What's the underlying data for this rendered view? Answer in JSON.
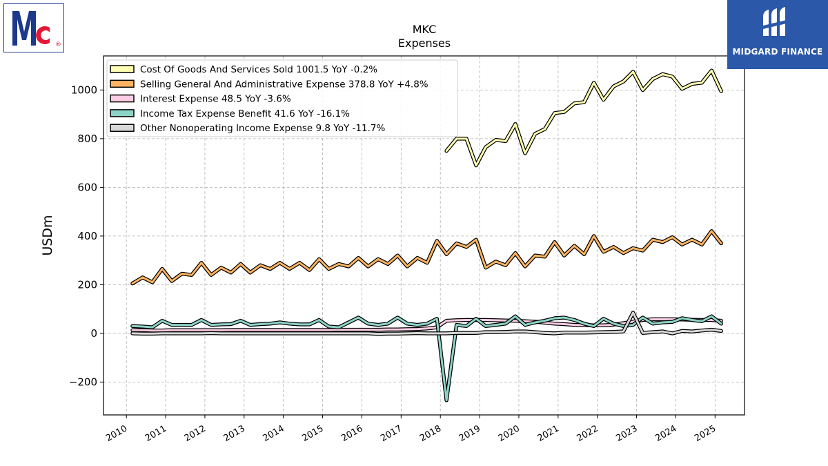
{
  "logos": {
    "company": "McCormick",
    "company_icon": "mc-logo-icon",
    "publisher_text": "MIDGARD FINANCE",
    "publisher_icon": "midgard-logo-icon"
  },
  "chart_data": {
    "type": "line",
    "title": "MKC",
    "subtitle": "Expenses",
    "xlabel": "",
    "ylabel": "USDm",
    "xlim": [
      "2009-06-01",
      "2025-10-01"
    ],
    "ylim": [
      -335,
      1140
    ],
    "xticks": [
      "2010",
      "2011",
      "2012",
      "2013",
      "2014",
      "2015",
      "2016",
      "2017",
      "2018",
      "2019",
      "2020",
      "2021",
      "2022",
      "2023",
      "2024",
      "2025"
    ],
    "yticks": [
      -200,
      0,
      200,
      400,
      600,
      800,
      1000
    ],
    "ytick_labels": [
      "−200",
      "0",
      "200",
      "400",
      "600",
      "800",
      "1000"
    ],
    "grid": true,
    "legend_position": "top-left",
    "series": [
      {
        "name": "Cost Of Goods And Services Sold",
        "legend": "Cost Of Goods And Services Sold  1001.5 YoY -0.2%",
        "color": "#ffffb3",
        "x": [
          "2018-02-28",
          "2018-05-31",
          "2018-08-31",
          "2018-11-30",
          "2019-02-28",
          "2019-05-31",
          "2019-08-31",
          "2019-11-30",
          "2020-02-29",
          "2020-05-31",
          "2020-08-31",
          "2020-11-30",
          "2021-02-28",
          "2021-05-31",
          "2021-08-31",
          "2021-11-30",
          "2022-02-28",
          "2022-05-31",
          "2022-08-31",
          "2022-11-30",
          "2023-02-28",
          "2023-05-31",
          "2023-08-31",
          "2023-11-30",
          "2024-02-29",
          "2024-05-31",
          "2024-08-31",
          "2024-11-30",
          "2025-02-28"
        ],
        "y": [
          750,
          800,
          800,
          690,
          765,
          795,
          790,
          860,
          740,
          820,
          840,
          905,
          910,
          945,
          950,
          1030,
          960,
          1015,
          1035,
          1075,
          1000,
          1045,
          1065,
          1055,
          1005,
          1025,
          1030,
          1080,
          995
        ]
      },
      {
        "name": "Selling General And Administrative Expense",
        "legend": "Selling General And Administrative Expense  378.8 YoY +4.8%",
        "color": "#fdb462",
        "x": [
          "2010-02-28",
          "2010-05-31",
          "2010-08-31",
          "2010-11-30",
          "2011-02-28",
          "2011-05-31",
          "2011-08-31",
          "2011-11-30",
          "2012-02-29",
          "2012-05-31",
          "2012-08-31",
          "2012-11-30",
          "2013-02-28",
          "2013-05-31",
          "2013-08-31",
          "2013-11-30",
          "2014-02-28",
          "2014-05-31",
          "2014-08-31",
          "2014-11-30",
          "2015-02-28",
          "2015-05-31",
          "2015-08-31",
          "2015-11-30",
          "2016-02-29",
          "2016-05-31",
          "2016-08-31",
          "2016-11-30",
          "2017-02-28",
          "2017-05-31",
          "2017-08-31",
          "2017-11-30",
          "2018-02-28",
          "2018-05-31",
          "2018-08-31",
          "2018-11-30",
          "2019-02-28",
          "2019-05-31",
          "2019-08-31",
          "2019-11-30",
          "2020-02-29",
          "2020-05-31",
          "2020-08-31",
          "2020-11-30",
          "2021-02-28",
          "2021-05-31",
          "2021-08-31",
          "2021-11-30",
          "2022-02-28",
          "2022-05-31",
          "2022-08-31",
          "2022-11-30",
          "2023-02-28",
          "2023-05-31",
          "2023-08-31",
          "2023-11-30",
          "2024-02-29",
          "2024-05-31",
          "2024-08-31",
          "2024-11-30",
          "2025-02-28"
        ],
        "y": [
          205,
          230,
          210,
          265,
          215,
          245,
          240,
          290,
          240,
          270,
          250,
          285,
          250,
          280,
          265,
          290,
          265,
          290,
          260,
          305,
          265,
          285,
          275,
          310,
          275,
          305,
          285,
          320,
          275,
          310,
          290,
          380,
          325,
          370,
          355,
          385,
          270,
          295,
          280,
          330,
          275,
          320,
          315,
          375,
          320,
          360,
          325,
          400,
          335,
          355,
          330,
          350,
          340,
          385,
          375,
          395,
          365,
          385,
          365,
          420,
          370
        ]
      },
      {
        "name": "Interest Expense",
        "legend": "Interest Expense  48.5 YoY -3.6%",
        "color": "#fccde5",
        "x": [
          "2010-02-28",
          "2010-05-31",
          "2010-08-31",
          "2010-11-30",
          "2011-02-28",
          "2011-05-31",
          "2011-08-31",
          "2011-11-30",
          "2012-02-29",
          "2012-05-31",
          "2012-08-31",
          "2012-11-30",
          "2013-02-28",
          "2013-05-31",
          "2013-08-31",
          "2013-11-30",
          "2014-02-28",
          "2014-05-31",
          "2014-08-31",
          "2014-11-30",
          "2015-02-28",
          "2015-05-31",
          "2015-08-31",
          "2015-11-30",
          "2016-02-29",
          "2016-05-31",
          "2016-08-31",
          "2016-11-30",
          "2017-02-28",
          "2017-05-31",
          "2017-08-31",
          "2017-11-30",
          "2018-02-28",
          "2018-05-31",
          "2018-08-31",
          "2018-11-30",
          "2019-02-28",
          "2019-05-31",
          "2019-08-31",
          "2019-11-30",
          "2020-02-29",
          "2020-05-31",
          "2020-08-31",
          "2020-11-30",
          "2021-02-28",
          "2021-05-31",
          "2021-08-31",
          "2021-11-30",
          "2022-02-28",
          "2022-05-31",
          "2022-08-31",
          "2022-11-30",
          "2023-02-28",
          "2023-05-31",
          "2023-08-31",
          "2023-11-30",
          "2024-02-29",
          "2024-05-31",
          "2024-08-31",
          "2024-11-30",
          "2025-02-28"
        ],
        "y": [
          13,
          13,
          12,
          12,
          13,
          13,
          13,
          13,
          13,
          13,
          14,
          14,
          14,
          14,
          14,
          14,
          14,
          14,
          14,
          14,
          14,
          15,
          15,
          15,
          15,
          15,
          16,
          16,
          17,
          18,
          20,
          25,
          52,
          54,
          55,
          55,
          55,
          54,
          53,
          52,
          50,
          48,
          44,
          40,
          38,
          35,
          34,
          33,
          33,
          36,
          42,
          48,
          55,
          58,
          58,
          58,
          57,
          56,
          55,
          55,
          52
        ]
      },
      {
        "name": "Income Tax Expense Benefit",
        "legend": "Income Tax Expense Benefit  41.6 YoY -16.1%",
        "color": "#8dd3c7",
        "x": [
          "2010-02-28",
          "2010-05-31",
          "2010-08-31",
          "2010-11-30",
          "2011-02-28",
          "2011-05-31",
          "2011-08-31",
          "2011-11-30",
          "2012-02-29",
          "2012-05-31",
          "2012-08-31",
          "2012-11-30",
          "2013-02-28",
          "2013-05-31",
          "2013-08-31",
          "2013-11-30",
          "2014-02-28",
          "2014-05-31",
          "2014-08-31",
          "2014-11-30",
          "2015-02-28",
          "2015-05-31",
          "2015-08-31",
          "2015-11-30",
          "2016-02-29",
          "2016-05-31",
          "2016-08-31",
          "2016-11-30",
          "2017-02-28",
          "2017-05-31",
          "2017-08-31",
          "2017-11-30",
          "2018-02-28",
          "2018-05-31",
          "2018-08-31",
          "2018-11-30",
          "2019-02-28",
          "2019-05-31",
          "2019-08-31",
          "2019-11-30",
          "2020-02-29",
          "2020-05-31",
          "2020-08-31",
          "2020-11-30",
          "2021-02-28",
          "2021-05-31",
          "2021-08-31",
          "2021-11-30",
          "2022-02-28",
          "2022-05-31",
          "2022-08-31",
          "2022-11-30",
          "2023-02-28",
          "2023-05-31",
          "2023-08-31",
          "2023-11-30",
          "2024-02-29",
          "2024-05-31",
          "2024-08-31",
          "2024-11-30",
          "2025-02-28"
        ],
        "y": [
          30,
          28,
          25,
          52,
          35,
          35,
          35,
          55,
          35,
          37,
          38,
          52,
          35,
          38,
          40,
          45,
          40,
          37,
          37,
          55,
          28,
          25,
          45,
          65,
          40,
          35,
          40,
          65,
          40,
          35,
          40,
          60,
          -275,
          35,
          30,
          60,
          30,
          35,
          40,
          70,
          35,
          45,
          52,
          62,
          65,
          55,
          40,
          30,
          60,
          40,
          30,
          35,
          65,
          40,
          45,
          47,
          62,
          55,
          50,
          70,
          40
        ]
      },
      {
        "name": "Other Nonoperating Income Expense",
        "legend": "Other Nonoperating Income Expense  9.8 YoY -11.7%",
        "color": "#d9d9d9",
        "x": [
          "2010-02-28",
          "2010-05-31",
          "2010-08-31",
          "2010-11-30",
          "2011-02-28",
          "2011-05-31",
          "2011-08-31",
          "2011-11-30",
          "2012-02-29",
          "2012-05-31",
          "2012-08-31",
          "2012-11-30",
          "2013-02-28",
          "2013-05-31",
          "2013-08-31",
          "2013-11-30",
          "2014-02-28",
          "2014-05-31",
          "2014-08-31",
          "2014-11-30",
          "2015-02-28",
          "2015-05-31",
          "2015-08-31",
          "2015-11-30",
          "2016-02-29",
          "2016-05-31",
          "2016-08-31",
          "2016-11-30",
          "2017-02-28",
          "2017-05-31",
          "2017-08-31",
          "2017-11-30",
          "2018-02-28",
          "2018-05-31",
          "2018-08-31",
          "2018-11-30",
          "2019-02-28",
          "2019-05-31",
          "2019-08-31",
          "2019-11-30",
          "2020-02-29",
          "2020-05-31",
          "2020-08-31",
          "2020-11-30",
          "2021-02-28",
          "2021-05-31",
          "2021-08-31",
          "2021-11-30",
          "2022-02-28",
          "2022-05-31",
          "2022-08-31",
          "2022-11-30",
          "2023-02-28",
          "2023-05-31",
          "2023-08-31",
          "2023-11-30",
          "2024-02-29",
          "2024-05-31",
          "2024-08-31",
          "2024-11-30",
          "2025-02-28"
        ],
        "y": [
          0,
          -1,
          -1,
          0,
          0,
          0,
          0,
          0,
          1,
          0,
          0,
          0,
          0,
          0,
          0,
          0,
          0,
          0,
          0,
          0,
          0,
          0,
          0,
          0,
          0,
          -2,
          -1,
          -1,
          0,
          1,
          0,
          0,
          0,
          2,
          2,
          2,
          5,
          5,
          6,
          8,
          8,
          5,
          2,
          0,
          3,
          3,
          3,
          4,
          5,
          6,
          8,
          85,
          2,
          5,
          8,
          0,
          10,
          8,
          12,
          15,
          10
        ]
      }
    ]
  }
}
